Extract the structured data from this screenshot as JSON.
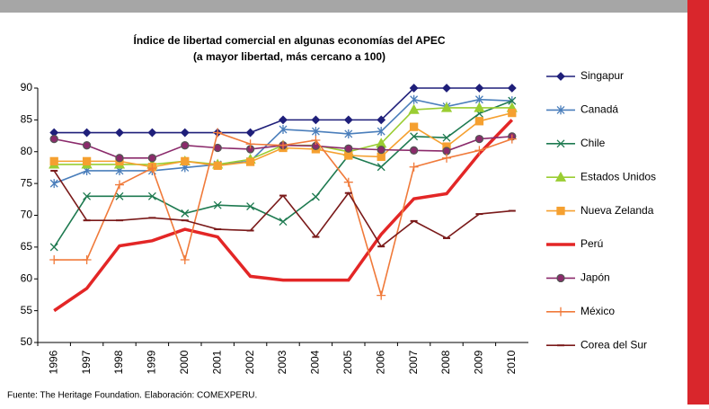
{
  "chart_data": {
    "type": "line",
    "title": "Índice de libertad comercial en algunas economías del APEC",
    "subtitle": "(a mayor libertad, más cercano a 100)",
    "source": "Fuente: The Heritage Foundation. Elaboración: COMEXPERU.",
    "categories": [
      "1996",
      "1997",
      "1998",
      "1999",
      "2000",
      "2001",
      "2002",
      "2003",
      "2004",
      "2005",
      "2006",
      "2007",
      "2008",
      "2009",
      "2010"
    ],
    "ylim": [
      50,
      90
    ],
    "yticks": [
      50,
      55,
      60,
      65,
      70,
      75,
      80,
      85,
      90
    ],
    "grid": false,
    "legend": "right",
    "series": [
      {
        "name": "Singapur",
        "color": "#1f1f7a",
        "marker": "diamond",
        "values": [
          83,
          83,
          83,
          83,
          83,
          83,
          83,
          85,
          85,
          85,
          85,
          90,
          90,
          90,
          90
        ]
      },
      {
        "name": "Canadá",
        "color": "#4a7ebb",
        "marker": "asterisk",
        "values": [
          75,
          77,
          77,
          77,
          77.5,
          78,
          78.5,
          83.5,
          83.2,
          82.8,
          83.2,
          88.2,
          87.1,
          88.2,
          88
        ]
      },
      {
        "name": "Chile",
        "color": "#1e7a50",
        "marker": "x",
        "values": [
          65,
          73,
          73,
          73,
          70.3,
          71.6,
          71.4,
          69,
          72.9,
          79.4,
          77.6,
          82.4,
          82.2,
          86,
          88
        ]
      },
      {
        "name": "Estados Unidos",
        "color": "#9acd32",
        "marker": "triangle",
        "values": [
          78,
          78,
          78,
          78,
          78.5,
          78,
          78.8,
          81,
          81,
          80,
          81.3,
          86.6,
          86.9,
          86.9,
          86.9
        ]
      },
      {
        "name": "Nueva Zelanda",
        "color": "#f5a030",
        "marker": "square",
        "values": [
          78.5,
          78.5,
          78.5,
          77.6,
          78.5,
          77.8,
          78.4,
          80.6,
          80.4,
          79.4,
          79.2,
          83.9,
          80.8,
          84.8,
          86.1
        ]
      },
      {
        "name": "Perú",
        "color": "#e32626",
        "marker": "none",
        "values": [
          55,
          58.5,
          65.2,
          66,
          67.8,
          66.6,
          60.4,
          59.8,
          59.8,
          59.8,
          67,
          72.6,
          73.4,
          79.7,
          85
        ]
      },
      {
        "name": "Japón",
        "color": "#8b2a6b",
        "marker": "circle",
        "values": [
          82,
          81,
          79,
          79,
          81,
          80.6,
          80.4,
          81,
          80.9,
          80.5,
          80.3,
          80.2,
          80.1,
          82,
          82.4
        ]
      },
      {
        "name": "México",
        "color": "#f07a3a",
        "marker": "plus",
        "values": [
          63,
          63,
          74.8,
          77.4,
          63,
          83,
          81.2,
          81,
          81.8,
          75.2,
          57.4,
          77.6,
          79,
          80.2,
          82
        ]
      },
      {
        "name": "Corea del Sur",
        "color": "#7a1a1a",
        "marker": "dash",
        "values": [
          77,
          69.2,
          69.2,
          69.6,
          69.2,
          67.8,
          67.6,
          73.1,
          66.6,
          73.5,
          65.1,
          69.1,
          66.4,
          70.2,
          70.7
        ]
      }
    ]
  }
}
